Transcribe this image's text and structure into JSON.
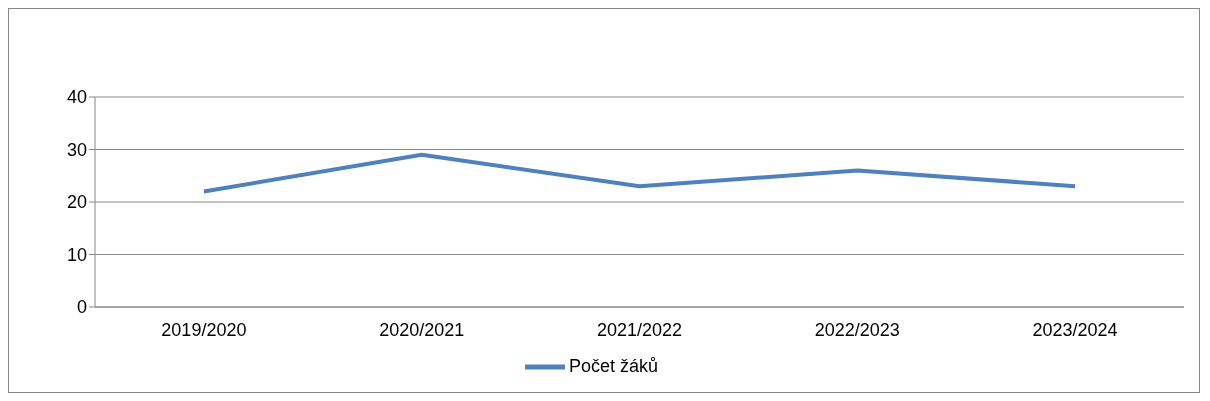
{
  "chart_data": {
    "type": "line",
    "categories": [
      "2019/2020",
      "2020/2021",
      "2021/2022",
      "2022/2023",
      "2023/2024"
    ],
    "series": [
      {
        "name": "Počet žáků",
        "color": "#4f81bd",
        "values": [
          22,
          29,
          23,
          26,
          23
        ]
      }
    ],
    "ylim": [
      0,
      40
    ],
    "yticks": [
      0,
      10,
      20,
      30,
      40
    ],
    "grid": "y",
    "legend": "bottom",
    "marker": "none",
    "line_style": "solid"
  }
}
